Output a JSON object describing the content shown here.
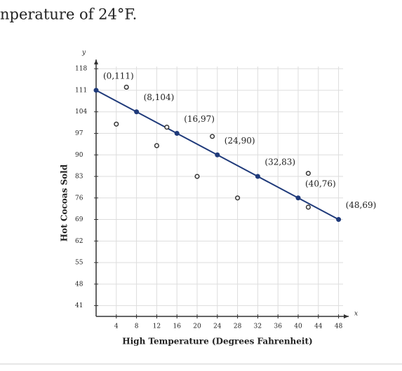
{
  "chart_data": {
    "type": "scatter",
    "text": "nperature of 24°F.",
    "xlabel": "High Temperature (Degrees Fahrenheit)",
    "ylabel": "Hot Cocoas Sold",
    "x_axis_symbol": "x",
    "y_axis_symbol": "y",
    "xlim": [
      0,
      50
    ],
    "ylim": [
      37.5,
      121
    ],
    "xticks": [
      4,
      8,
      12,
      16,
      20,
      24,
      28,
      32,
      36,
      40,
      44,
      48
    ],
    "yticks": [
      41,
      48,
      55,
      62,
      69,
      76,
      83,
      90,
      97,
      104,
      111,
      118
    ],
    "grid": true,
    "series": [
      {
        "style": "line",
        "color": "#1f3a7a",
        "x": [
          0,
          8,
          16,
          24,
          32,
          40,
          48
        ],
        "values": [
          111,
          104,
          97,
          90,
          83,
          76,
          69
        ],
        "point_labels": [
          "(0,111)",
          "(8,104)",
          "(16,97)",
          "(24,90)",
          "(32,83)",
          "(40,76)",
          "(48,69)"
        ]
      },
      {
        "style": "open",
        "color": "#333333",
        "x": [
          6,
          4,
          14,
          12,
          23,
          20,
          28,
          42,
          42
        ],
        "values": [
          112,
          100,
          99,
          93,
          96,
          83,
          76,
          84,
          73
        ]
      }
    ]
  }
}
